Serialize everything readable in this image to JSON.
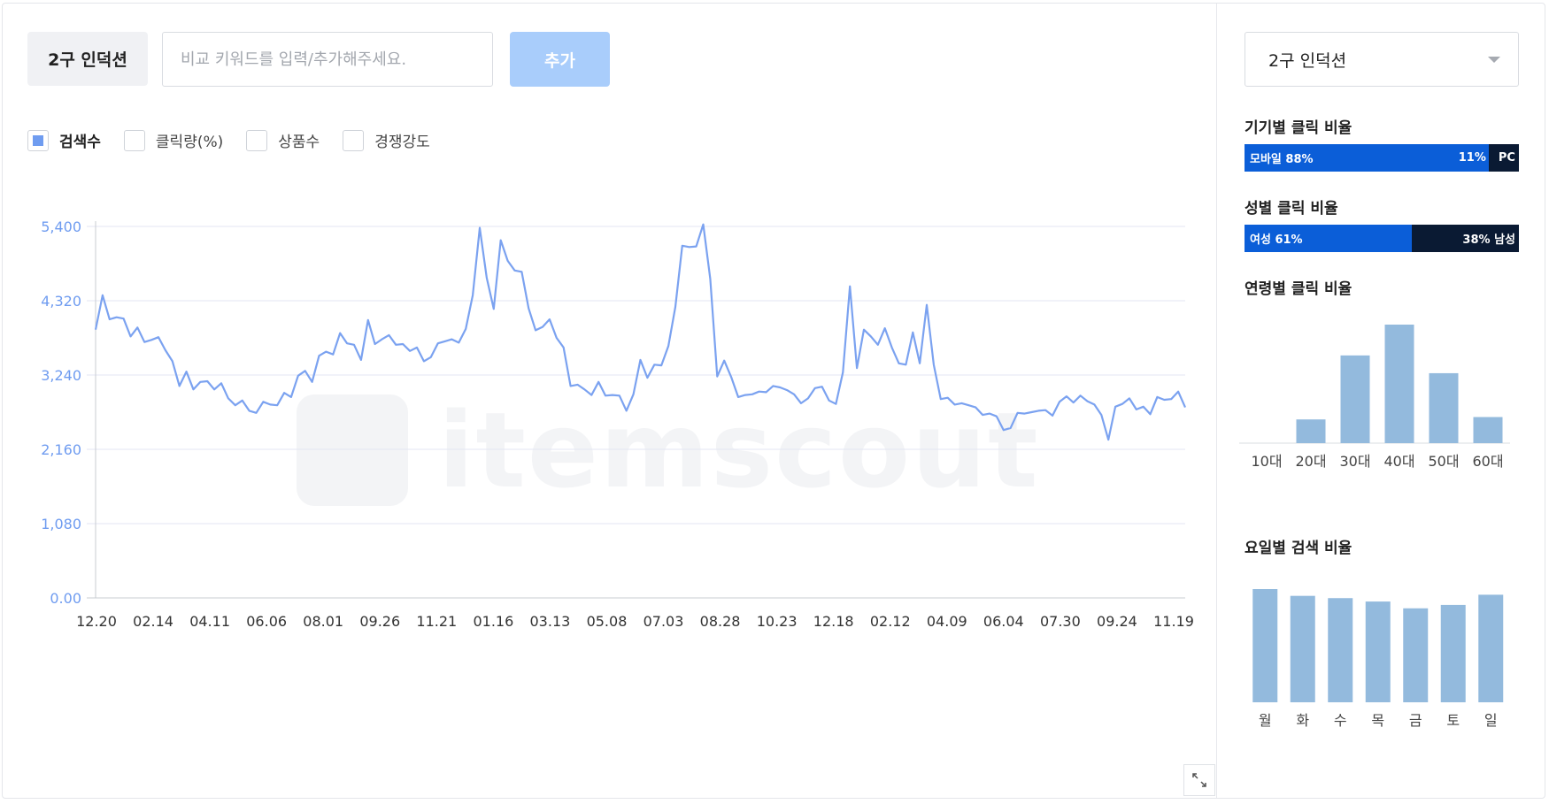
{
  "toolbar": {
    "keyword": "2구 인덕션",
    "compare_placeholder": "비교 키워드를 입력/추가해주세요.",
    "add_label": "추가"
  },
  "metrics": [
    {
      "label": "검색수",
      "checked": true
    },
    {
      "label": "클릭량(%)",
      "checked": false
    },
    {
      "label": "상품수",
      "checked": false
    },
    {
      "label": "경쟁강도",
      "checked": false
    }
  ],
  "watermark": "itemscout",
  "side": {
    "selected_keyword": "2구 인덕션",
    "device": {
      "title": "기기별 클릭 비율",
      "mobile_label": "모바일 88%",
      "pc_label": "11% PC",
      "mobile_pct": 88,
      "pc_pct": 11
    },
    "gender": {
      "title": "성별 클릭 비율",
      "female_label": "여성 61%",
      "male_label": "38% 남성",
      "female_pct": 61,
      "male_pct": 38
    },
    "age_title": "연령별 클릭 비율",
    "dow_title": "요일별 검색 비율"
  },
  "colors": {
    "line": "#7ba2f0",
    "axis_label": "#6f9cf0",
    "side_bar": "#93badd",
    "mobile": "#0b5ed8",
    "pc": "#0a1a33"
  },
  "chart_data": [
    {
      "type": "line",
      "series": [
        {
          "values": [
            3900,
            4400,
            4050,
            4080,
            4060,
            3800,
            3930,
            3720,
            3750,
            3790,
            3600,
            3440,
            3080,
            3290,
            3030,
            3140,
            3150,
            3030,
            3120,
            2900,
            2800,
            2870,
            2720,
            2690,
            2850,
            2810,
            2800,
            2980,
            2920,
            3230,
            3300,
            3140,
            3520,
            3580,
            3540,
            3850,
            3700,
            3680,
            3460,
            4040,
            3690,
            3760,
            3820,
            3680,
            3690,
            3590,
            3640,
            3440,
            3500,
            3700,
            3730,
            3760,
            3710,
            3910,
            4400,
            5380,
            4650,
            4200,
            5200,
            4900,
            4760,
            4740,
            4210,
            3890,
            3940,
            4050,
            3780,
            3640,
            3080,
            3100,
            3030,
            2950,
            3140,
            2940,
            2950,
            2940,
            2720,
            2960,
            3460,
            3200,
            3390,
            3380,
            3660,
            4230,
            5120,
            5100,
            5110,
            5430,
            4640,
            3220,
            3450,
            3210,
            2920,
            2950,
            2960,
            3000,
            2990,
            3080,
            3060,
            3020,
            2960,
            2830,
            2900,
            3050,
            3070,
            2870,
            2820,
            3280,
            4530,
            3340,
            3900,
            3800,
            3680,
            3920,
            3640,
            3410,
            3390,
            3860,
            3410,
            4260,
            3390,
            2890,
            2910,
            2810,
            2830,
            2800,
            2770,
            2660,
            2680,
            2640,
            2440,
            2470,
            2690,
            2680,
            2700,
            2720,
            2730,
            2650,
            2850,
            2930,
            2840,
            2940,
            2860,
            2810,
            2660,
            2300,
            2780,
            2820,
            2900,
            2740,
            2780,
            2670,
            2920,
            2880,
            2890,
            3000,
            2770
          ]
        }
      ],
      "x_tick_labels": [
        "12.20",
        "02.14",
        "04.11",
        "06.06",
        "08.01",
        "09.26",
        "11.21",
        "01.16",
        "03.13",
        "05.08",
        "07.03",
        "08.28",
        "10.23",
        "12.18",
        "02.12",
        "04.09",
        "06.04",
        "07.30",
        "09.24",
        "11.19"
      ],
      "y_ticks": [
        "0.00",
        "1,080",
        "2,160",
        "3,240",
        "4,320",
        "5,400"
      ],
      "ylim": [
        0,
        5400
      ],
      "grid": true
    },
    {
      "type": "bar",
      "categories": [
        "10대",
        "20대",
        "30대",
        "40대",
        "50대",
        "60대"
      ],
      "values": [
        0,
        20,
        74,
        100,
        59,
        22
      ]
    },
    {
      "type": "bar",
      "categories": [
        "월",
        "화",
        "수",
        "목",
        "금",
        "토",
        "일"
      ],
      "values": [
        100,
        94,
        92,
        89,
        83,
        86,
        95
      ]
    }
  ]
}
